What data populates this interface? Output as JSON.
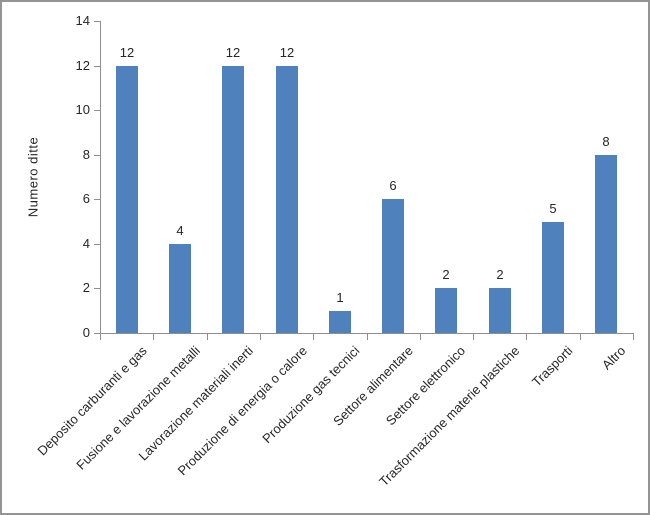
{
  "chart_data": {
    "type": "bar",
    "title": "",
    "ylabel": "Numero ditte",
    "xlabel": "",
    "categories": [
      "Deposito carburanti e gas",
      "Fusione e lavorazione metalli",
      "Lavorazione materiali inerti",
      "Produzione di energia o calore",
      "Produzione gas tecnici",
      "Settore alimentare",
      "Settore elettronico",
      "Trasformazione materie plastiche",
      "Trasporti",
      "Altro"
    ],
    "values": [
      12,
      4,
      12,
      12,
      1,
      6,
      2,
      2,
      5,
      8
    ],
    "ylim": [
      0,
      14
    ],
    "ytick_step": 2,
    "grid": false,
    "legend": "none",
    "bar_color": "#4F81BD",
    "axis_color": "#8e8e8e",
    "text_color": "#262626",
    "frame_border_color": "#949494",
    "background_color": "#ffffff"
  }
}
